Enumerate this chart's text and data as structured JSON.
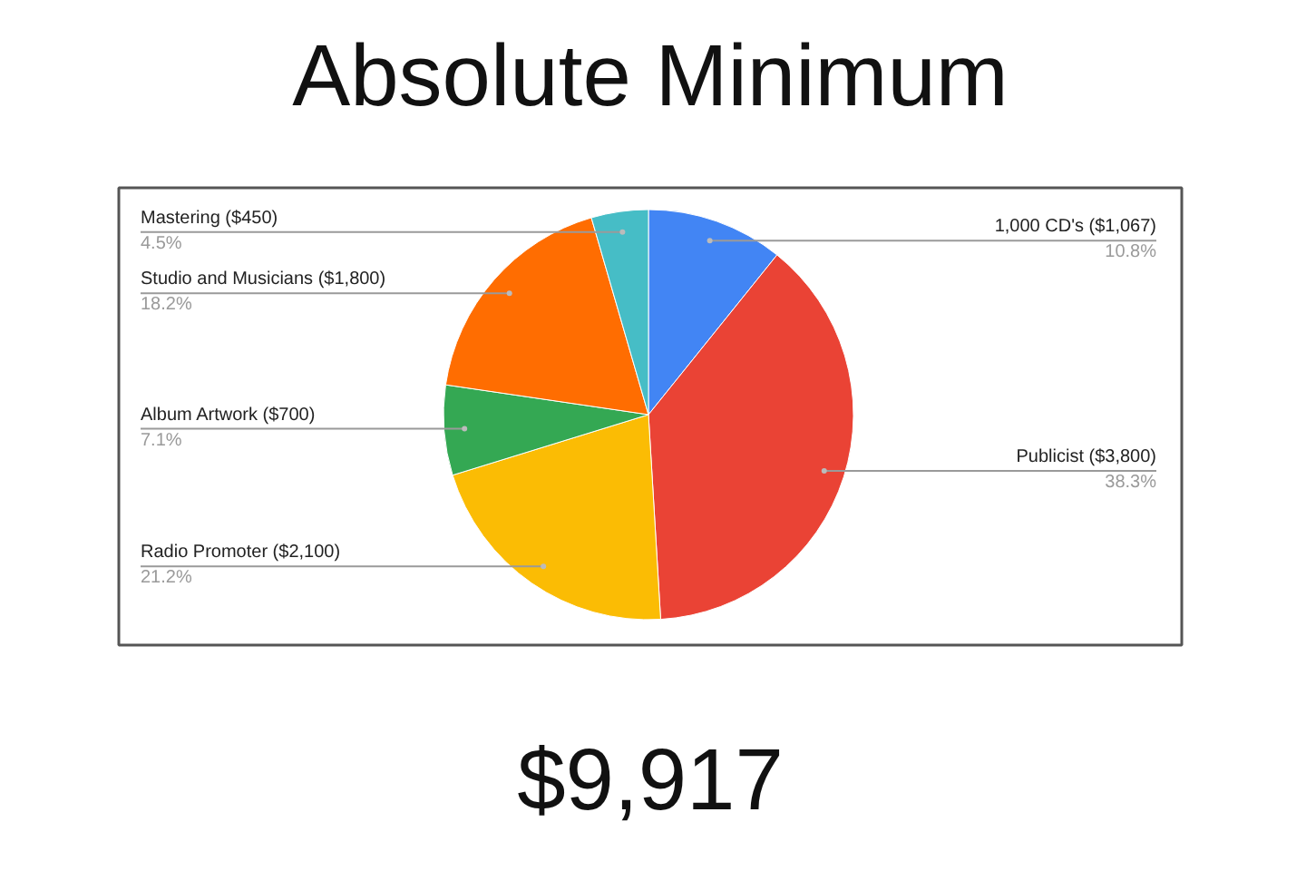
{
  "chart_data": {
    "type": "pie",
    "title": "Absolute Minimum",
    "categories": [
      "1,000 CD's ($1,067)",
      "Publicist ($3,800)",
      "Radio Promoter ($2,100)",
      "Album Artwork ($700)",
      "Studio and Musicians ($1,800)",
      "Mastering ($450)"
    ],
    "values": [
      10.8,
      38.3,
      21.2,
      7.1,
      18.2,
      4.5
    ],
    "colors": [
      "#4285f4",
      "#ea4335",
      "#fbbc04",
      "#34a853",
      "#ff6d01",
      "#46bdc6"
    ],
    "value_labels": [
      "10.8%",
      "38.3%",
      "21.2%",
      "7.1%",
      "18.2%",
      "4.5%"
    ],
    "annotations": [
      "$9,917"
    ]
  }
}
